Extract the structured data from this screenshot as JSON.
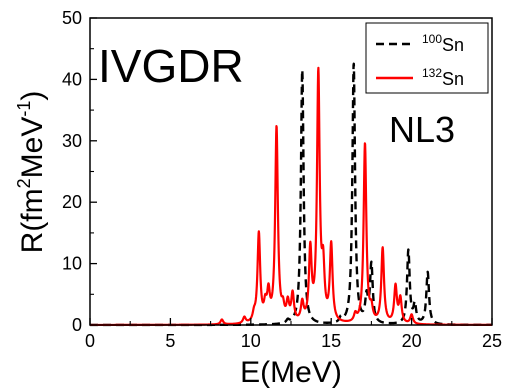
{
  "chart_data": {
    "type": "line",
    "title": "",
    "xlabel": "E(MeV)",
    "ylabel_parts": {
      "prefix": "R(fm",
      "sup1": "2",
      "mid": "MeV",
      "sup2": "-1",
      "suffix": ")"
    },
    "xlim": [
      0,
      25
    ],
    "ylim": [
      0,
      50
    ],
    "xticks": [
      0,
      5,
      10,
      15,
      20,
      25
    ],
    "yticks": [
      0,
      10,
      20,
      30,
      40,
      50
    ],
    "grid": false,
    "legend_position": "top-right",
    "annotations": [
      {
        "id": "mode",
        "text": "IVGDR"
      },
      {
        "id": "model",
        "text": "NL3"
      }
    ],
    "series": [
      {
        "name": "100Sn",
        "mass_number": "100",
        "element": "Sn",
        "color": "#000000",
        "style": "dashed",
        "peaks": [
          {
            "e": 12.3,
            "h": 0.5
          },
          {
            "e": 13.2,
            "h": 41.5
          },
          {
            "e": 15.6,
            "h": 0.8
          },
          {
            "e": 16.4,
            "h": 42.5
          },
          {
            "e": 17.2,
            "h": 4.0
          },
          {
            "e": 17.5,
            "h": 9.5
          },
          {
            "e": 19.8,
            "h": 12.0
          },
          {
            "e": 20.2,
            "h": 3.0
          },
          {
            "e": 21.0,
            "h": 8.5
          }
        ]
      },
      {
        "name": "132Sn",
        "mass_number": "132",
        "element": "Sn",
        "color": "#ff0000",
        "style": "solid",
        "peaks": [
          {
            "e": 8.2,
            "h": 0.8
          },
          {
            "e": 9.6,
            "h": 1.0
          },
          {
            "e": 10.2,
            "h": 1.2
          },
          {
            "e": 10.5,
            "h": 14.5
          },
          {
            "e": 10.9,
            "h": 2.5
          },
          {
            "e": 11.1,
            "h": 4.5
          },
          {
            "e": 11.6,
            "h": 31.8
          },
          {
            "e": 12.0,
            "h": 2.0
          },
          {
            "e": 12.3,
            "h": 3.0
          },
          {
            "e": 12.6,
            "h": 4.5
          },
          {
            "e": 13.2,
            "h": 3.0
          },
          {
            "e": 13.7,
            "h": 11.5
          },
          {
            "e": 14.2,
            "h": 40.3
          },
          {
            "e": 14.5,
            "h": 8.0
          },
          {
            "e": 15.0,
            "h": 12.5
          },
          {
            "e": 16.5,
            "h": 1.2
          },
          {
            "e": 17.1,
            "h": 29.3
          },
          {
            "e": 17.5,
            "h": 2.0
          },
          {
            "e": 18.2,
            "h": 12.2
          },
          {
            "e": 19.0,
            "h": 6.0
          },
          {
            "e": 19.3,
            "h": 4.0
          },
          {
            "e": 20.0,
            "h": 1.5
          }
        ]
      }
    ]
  }
}
